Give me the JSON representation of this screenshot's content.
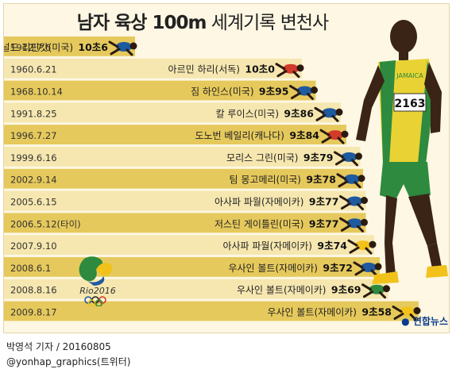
{
  "title_bold": "남자 육상 100m",
  "title_rest": " 세계기록 변천사",
  "colors": {
    "band_dark": "#e6c95c",
    "band_light": "#f6e7b0",
    "background": "#fdf7e3",
    "runner_blue": "#1e5aa0",
    "runner_red": "#d23a2a",
    "runner_yellow": "#f2c21a",
    "runner_green": "#2d8a3e"
  },
  "chart_data": {
    "type": "table",
    "columns": [
      "date",
      "athlete",
      "record_seconds"
    ],
    "rows": [
      {
        "date": "1912.7.6",
        "athlete": "도널드 리핀캇(미국)",
        "time_label": "10초6",
        "seconds": 10.6
      },
      {
        "date": "1960.6.21",
        "athlete": "아르민 하리(서독)",
        "time_label": "10초0",
        "seconds": 10.0
      },
      {
        "date": "1968.10.14",
        "athlete": "짐 하인스(미국)",
        "time_label": "9초95",
        "seconds": 9.95
      },
      {
        "date": "1991.8.25",
        "athlete": "칼 루이스(미국)",
        "time_label": "9초86",
        "seconds": 9.86
      },
      {
        "date": "1996.7.27",
        "athlete": "도노번 베일리(캐나다)",
        "time_label": "9초84",
        "seconds": 9.84
      },
      {
        "date": "1999.6.16",
        "athlete": "모리스 그린(미국)",
        "time_label": "9초79",
        "seconds": 9.79
      },
      {
        "date": "2002.9.14",
        "athlete": "팀 몽고메리(미국)",
        "time_label": "9초78",
        "seconds": 9.78
      },
      {
        "date": "2005.6.15",
        "athlete": "아사파 파월(자메이카)",
        "time_label": "9초77",
        "seconds": 9.77
      },
      {
        "date": "2006.5.12(타이)",
        "athlete": "저스틴 게이틀린(미국)",
        "time_label": "9초77",
        "seconds": 9.77
      },
      {
        "date": "2007.9.10",
        "athlete": "아사파 파월(자메이카)",
        "time_label": "9초74",
        "seconds": 9.74
      },
      {
        "date": "2008.6.1",
        "athlete": "우사인 볼트(자메이카)",
        "time_label": "9초72",
        "seconds": 9.72
      },
      {
        "date": "2008.8.16",
        "athlete": "우사인 볼트(자메이카)",
        "time_label": "9초69",
        "seconds": 9.69
      },
      {
        "date": "2009.8.17",
        "athlete": "우사인 볼트(자메이카)",
        "time_label": "9초58",
        "seconds": 9.58
      }
    ]
  },
  "runner_colors": [
    "blue",
    "red",
    "blue",
    "blue",
    "red",
    "blue",
    "blue",
    "blue",
    "blue",
    "yellow",
    "blue",
    "green",
    "yellow"
  ],
  "bib_number": "2163",
  "jersey_text": "JAMAICA",
  "rio_logo_text": "Rio2016",
  "footer": {
    "credit": "박영석 기자 / 20160805",
    "twitter": "@yonhap_graphics(트위터)"
  },
  "agency": "연합뉴스"
}
